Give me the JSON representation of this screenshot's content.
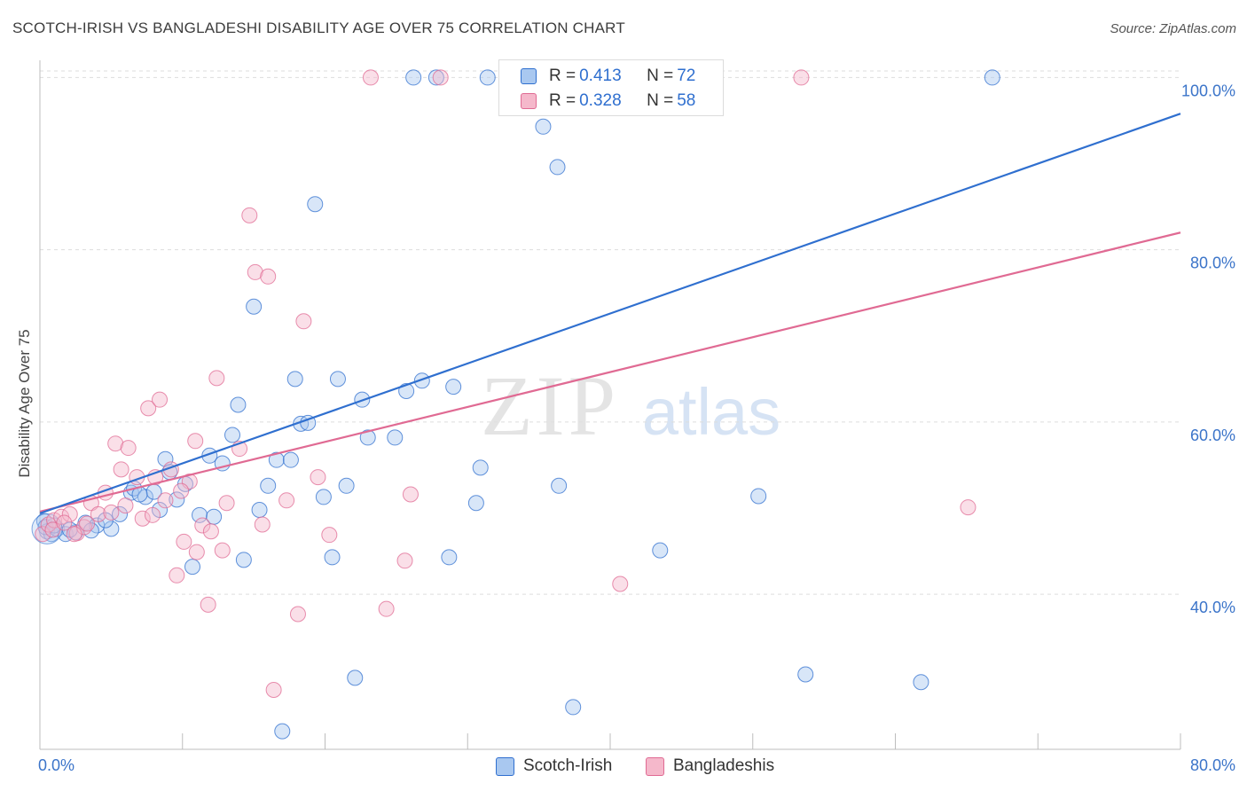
{
  "header": {
    "title": "SCOTCH-IRISH VS BANGLADESHI DISABILITY AGE OVER 75 CORRELATION CHART",
    "source": "Source: ZipAtlas.com"
  },
  "colors": {
    "blue": "#2f6fcf",
    "blue_fill": "#a9c8f0",
    "pink": "#e06a93",
    "pink_fill": "#f5b8cb",
    "grid": "#dddddd",
    "axis_text": "#3b74c9"
  },
  "legend": {
    "rows": [
      {
        "r_label": "R = ",
        "r_value": "0.413",
        "n_label": "N = ",
        "n_value": "72"
      },
      {
        "r_label": "R = ",
        "r_value": "0.328",
        "n_label": "N = ",
        "n_value": "58"
      }
    ]
  },
  "bottom_legend": {
    "scotch": "Scotch-Irish",
    "bangla": "Bangladeshis"
  },
  "watermark": {
    "zip": "ZIP",
    "atlas": "atlas"
  },
  "chart_data": {
    "type": "scatter",
    "ylabel": "Disability Age Over 75",
    "xlim": [
      0,
      80
    ],
    "ylim": [
      22,
      102
    ],
    "x_tick_labels": [
      "0.0%",
      "80.0%"
    ],
    "y_ticks": [
      40,
      60,
      80,
      100
    ],
    "y_tick_labels": [
      "40.0%",
      "60.0%",
      "80.0%",
      "100.0%"
    ],
    "grid": true,
    "legend_position": "top-center",
    "series": [
      {
        "name": "Scotch-Irish",
        "R": 0.413,
        "N": 72,
        "color": "#2f6fcf",
        "trend": {
          "x": [
            0,
            80
          ],
          "y": [
            49.4,
            95.8
          ]
        },
        "points": [
          [
            0.3,
            48.5
          ],
          [
            0.5,
            47.3
          ],
          [
            0.8,
            47.0
          ],
          [
            1.2,
            47.6
          ],
          [
            1.8,
            47.0
          ],
          [
            2.5,
            47.2
          ],
          [
            3.2,
            48.3
          ],
          [
            4.0,
            48.0
          ],
          [
            5.0,
            47.6
          ],
          [
            5.6,
            49.3
          ],
          [
            6.4,
            51.8
          ],
          [
            6.6,
            52.3
          ],
          [
            7.4,
            51.3
          ],
          [
            8.0,
            51.9
          ],
          [
            8.4,
            49.8
          ],
          [
            8.8,
            55.7
          ],
          [
            9.1,
            54.2
          ],
          [
            10.2,
            52.8
          ],
          [
            10.7,
            43.2
          ],
          [
            11.2,
            49.2
          ],
          [
            11.9,
            56.1
          ],
          [
            12.2,
            49.0
          ],
          [
            12.8,
            55.2
          ],
          [
            13.5,
            58.5
          ],
          [
            13.9,
            62.0
          ],
          [
            14.3,
            44.0
          ],
          [
            15.0,
            73.4
          ],
          [
            15.4,
            49.8
          ],
          [
            16.0,
            52.6
          ],
          [
            16.6,
            55.6
          ],
          [
            17.0,
            24.1
          ],
          [
            17.6,
            55.6
          ],
          [
            17.9,
            65.0
          ],
          [
            18.3,
            59.8
          ],
          [
            18.8,
            59.9
          ],
          [
            19.3,
            85.3
          ],
          [
            19.9,
            51.3
          ],
          [
            20.5,
            44.3
          ],
          [
            20.9,
            65.0
          ],
          [
            21.5,
            52.6
          ],
          [
            22.1,
            30.3
          ],
          [
            22.6,
            62.6
          ],
          [
            23.0,
            58.2
          ],
          [
            24.9,
            58.2
          ],
          [
            25.7,
            63.6
          ],
          [
            26.2,
            100.0
          ],
          [
            26.8,
            64.8
          ],
          [
            27.8,
            100.0
          ],
          [
            28.7,
            44.3
          ],
          [
            29.0,
            64.1
          ],
          [
            30.6,
            50.6
          ],
          [
            30.9,
            54.7
          ],
          [
            31.4,
            100.0
          ],
          [
            34.5,
            100.0
          ],
          [
            35.3,
            94.3
          ],
          [
            36.3,
            89.6
          ],
          [
            36.4,
            52.6
          ],
          [
            37.4,
            26.9
          ],
          [
            38.0,
            100.0
          ],
          [
            40.6,
            100.0
          ],
          [
            43.5,
            45.1
          ],
          [
            50.4,
            51.4
          ],
          [
            53.7,
            30.7
          ],
          [
            61.8,
            29.8
          ],
          [
            66.8,
            100.0
          ],
          [
            0.4,
            47.8
          ],
          [
            1.0,
            48.0
          ],
          [
            2.1,
            47.5
          ],
          [
            3.6,
            47.4
          ],
          [
            4.6,
            48.6
          ],
          [
            7.0,
            51.6
          ],
          [
            9.6,
            51.0
          ]
        ]
      },
      {
        "name": "Bangladeshis",
        "R": 0.328,
        "N": 58,
        "color": "#e06a93",
        "trend": {
          "x": [
            0,
            80
          ],
          "y": [
            49.6,
            82.0
          ]
        },
        "points": [
          [
            0.2,
            47.0
          ],
          [
            0.6,
            48.1
          ],
          [
            1.0,
            48.6
          ],
          [
            1.5,
            49.0
          ],
          [
            2.1,
            49.3
          ],
          [
            2.6,
            47.1
          ],
          [
            3.1,
            47.8
          ],
          [
            3.6,
            50.6
          ],
          [
            4.1,
            49.3
          ],
          [
            4.6,
            51.8
          ],
          [
            5.3,
            57.5
          ],
          [
            5.7,
            54.5
          ],
          [
            6.2,
            57.0
          ],
          [
            6.8,
            53.6
          ],
          [
            7.2,
            48.8
          ],
          [
            7.6,
            61.6
          ],
          [
            8.1,
            53.6
          ],
          [
            8.4,
            62.6
          ],
          [
            8.8,
            50.9
          ],
          [
            9.2,
            54.5
          ],
          [
            9.6,
            42.2
          ],
          [
            10.1,
            46.1
          ],
          [
            10.5,
            53.1
          ],
          [
            10.9,
            57.8
          ],
          [
            11.0,
            44.9
          ],
          [
            11.4,
            48.0
          ],
          [
            11.8,
            38.8
          ],
          [
            12.4,
            65.1
          ],
          [
            12.8,
            45.1
          ],
          [
            13.1,
            50.6
          ],
          [
            14.0,
            56.9
          ],
          [
            14.7,
            84.0
          ],
          [
            15.1,
            77.4
          ],
          [
            15.6,
            48.1
          ],
          [
            16.0,
            76.9
          ],
          [
            16.4,
            28.9
          ],
          [
            17.3,
            50.9
          ],
          [
            18.1,
            37.7
          ],
          [
            18.5,
            71.7
          ],
          [
            19.5,
            53.6
          ],
          [
            20.3,
            46.9
          ],
          [
            23.2,
            100.0
          ],
          [
            24.3,
            38.3
          ],
          [
            25.6,
            43.9
          ],
          [
            26.0,
            51.6
          ],
          [
            28.1,
            100.0
          ],
          [
            40.7,
            41.2
          ],
          [
            53.4,
            100.0
          ],
          [
            65.1,
            50.1
          ],
          [
            0.9,
            47.5
          ],
          [
            1.7,
            48.3
          ],
          [
            2.4,
            47.0
          ],
          [
            3.3,
            48.2
          ],
          [
            5.0,
            49.5
          ],
          [
            6.0,
            50.3
          ],
          [
            7.9,
            49.2
          ],
          [
            9.9,
            52.0
          ],
          [
            12.0,
            47.3
          ]
        ]
      }
    ]
  }
}
